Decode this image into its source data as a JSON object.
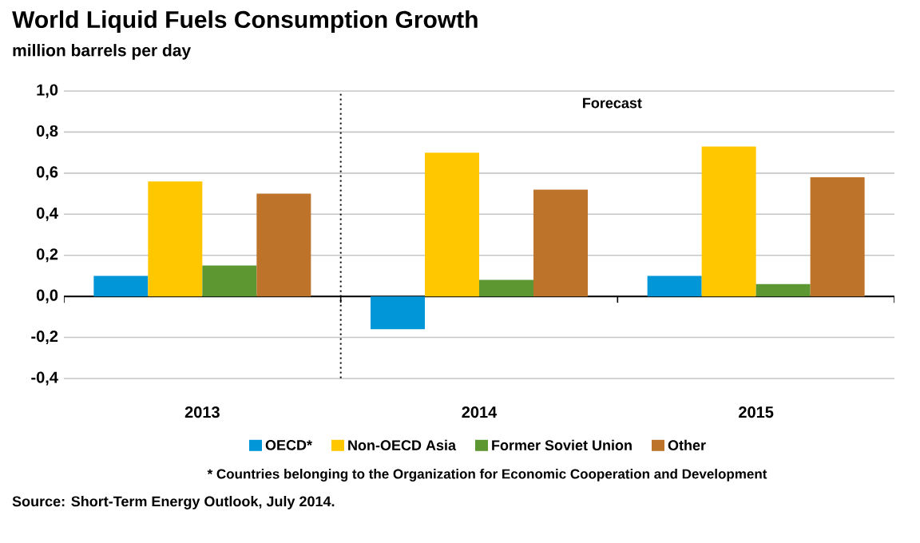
{
  "chart_data": {
    "type": "bar",
    "title": "World Liquid Fuels Consumption Growth",
    "subtitle": "million barrels per day",
    "categories": [
      "2013",
      "2014",
      "2015"
    ],
    "series": [
      {
        "name": "OECD*",
        "color": "#0096d7",
        "values": [
          0.1,
          -0.16,
          0.1
        ]
      },
      {
        "name": "Non-OECD Asia",
        "color": "#ffc700",
        "values": [
          0.56,
          0.7,
          0.73
        ]
      },
      {
        "name": "Former Soviet Union",
        "color": "#5d9732",
        "values": [
          0.15,
          0.08,
          0.06
        ]
      },
      {
        "name": "Other",
        "color": "#bd732a",
        "values": [
          0.5,
          0.52,
          0.58
        ]
      }
    ],
    "ylim": [
      -0.4,
      1.0
    ],
    "yticks": [
      {
        "value": -0.4,
        "label": "-0,4"
      },
      {
        "value": -0.2,
        "label": "-0,2"
      },
      {
        "value": 0,
        "label": "0,0"
      },
      {
        "value": 0.2,
        "label": "0,2"
      },
      {
        "value": 0.4,
        "label": "0,4"
      },
      {
        "value": 0.6,
        "label": "0,6"
      },
      {
        "value": 0.8,
        "label": "0,8"
      },
      {
        "value": 1.0,
        "label": "1,0"
      }
    ],
    "grid": "y",
    "legend": "bottom",
    "annotations": [
      "Forecast",
      "*  Countries belonging to the Organization for Economic Cooperation and Development",
      "Source: Short-Term Energy Outlook, July 2014."
    ]
  }
}
